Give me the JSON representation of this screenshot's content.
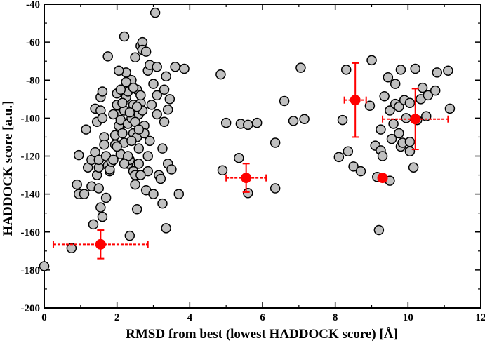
{
  "chart_data": {
    "type": "scatter",
    "title": "",
    "xlabel": "RMSD from best (lowest HADDOCK score) [Å]",
    "ylabel": "HADDOCK score [a.u.]",
    "xlim": [
      0,
      12
    ],
    "ylim": [
      -200,
      -40
    ],
    "x_ticks": [
      0,
      2,
      4,
      6,
      8,
      10,
      12
    ],
    "y_ticks": [
      -200,
      -180,
      -160,
      -140,
      -120,
      -100,
      -80,
      -60,
      -40
    ],
    "grid": false,
    "legend": "none",
    "colors": {
      "points_fill": "#c0c0c0",
      "points_stroke": "#000000",
      "cluster": "#ff0000"
    },
    "series": [
      {
        "marker": "circle-gray",
        "points": [
          [
            0.0,
            -178
          ],
          [
            0.75,
            -168.5
          ],
          [
            0.9,
            -135
          ],
          [
            0.95,
            -140
          ],
          [
            0.95,
            -119.5
          ],
          [
            1.1,
            -140
          ],
          [
            1.15,
            -106
          ],
          [
            1.2,
            -126
          ],
          [
            1.3,
            -122
          ],
          [
            1.3,
            -136
          ],
          [
            1.35,
            -156
          ],
          [
            1.4,
            -118
          ],
          [
            1.4,
            -95
          ],
          [
            1.45,
            -102
          ],
          [
            1.45,
            -130
          ],
          [
            1.5,
            -126
          ],
          [
            1.5,
            -137
          ],
          [
            1.55,
            -147
          ],
          [
            1.6,
            -152
          ],
          [
            1.5,
            -122
          ],
          [
            1.55,
            -96
          ],
          [
            1.55,
            -89
          ],
          [
            1.6,
            -86
          ],
          [
            1.6,
            -100
          ],
          [
            1.65,
            -110
          ],
          [
            1.65,
            -114
          ],
          [
            1.7,
            -142
          ],
          [
            1.7,
            -120
          ],
          [
            1.75,
            -125
          ],
          [
            1.75,
            -67.5
          ],
          [
            1.8,
            -128
          ],
          [
            1.8,
            -127
          ],
          [
            1.85,
            -123
          ],
          [
            1.9,
            -122
          ],
          [
            1.95,
            -114
          ],
          [
            1.95,
            -109
          ],
          [
            2.0,
            -93
          ],
          [
            2.0,
            -87
          ],
          [
            2.0,
            -98
          ],
          [
            2.05,
            -104
          ],
          [
            2.1,
            -119
          ],
          [
            2.1,
            -101
          ],
          [
            2.15,
            -108
          ],
          [
            2.2,
            -57
          ],
          [
            2.2,
            -96
          ],
          [
            2.2,
            -113
          ],
          [
            2.25,
            -89
          ],
          [
            2.25,
            -76
          ],
          [
            2.3,
            -86
          ],
          [
            2.3,
            -103
          ],
          [
            2.3,
            -124
          ],
          [
            2.35,
            -162
          ],
          [
            2.35,
            -122
          ],
          [
            2.4,
            -80
          ],
          [
            2.4,
            -100
          ],
          [
            2.45,
            -93
          ],
          [
            2.45,
            -108
          ],
          [
            2.45,
            -128
          ],
          [
            2.5,
            -135
          ],
          [
            2.5,
            -130
          ],
          [
            2.55,
            -85
          ],
          [
            2.55,
            -110
          ],
          [
            2.6,
            -116
          ],
          [
            2.6,
            -124
          ],
          [
            2.6,
            -98
          ],
          [
            2.65,
            -92
          ],
          [
            2.65,
            -88
          ],
          [
            2.65,
            -62
          ],
          [
            2.7,
            -60
          ],
          [
            2.7,
            -64
          ],
          [
            2.7,
            -96
          ],
          [
            2.75,
            -104
          ],
          [
            2.75,
            -108
          ],
          [
            2.8,
            -138
          ],
          [
            2.85,
            -128
          ],
          [
            2.85,
            -120
          ],
          [
            2.8,
            -65
          ],
          [
            2.85,
            -75
          ],
          [
            2.9,
            -72
          ],
          [
            2.9,
            -112
          ],
          [
            2.95,
            -93
          ],
          [
            3.0,
            -82
          ],
          [
            3.0,
            -140
          ],
          [
            3.05,
            -44.5
          ],
          [
            3.1,
            -98
          ],
          [
            3.1,
            -73
          ],
          [
            3.1,
            -88
          ],
          [
            3.15,
            -130
          ],
          [
            3.2,
            -132
          ],
          [
            3.25,
            -145
          ],
          [
            3.25,
            -116
          ],
          [
            3.3,
            -85
          ],
          [
            3.3,
            -102
          ],
          [
            3.35,
            -78
          ],
          [
            3.35,
            -158
          ],
          [
            3.4,
            -95.5
          ],
          [
            3.4,
            -124
          ],
          [
            3.45,
            -90
          ],
          [
            3.5,
            -127
          ],
          [
            3.6,
            -73
          ],
          [
            3.7,
            -140
          ],
          [
            3.85,
            -74
          ],
          [
            2.05,
            -75
          ],
          [
            2.5,
            -68
          ],
          [
            2.55,
            -148
          ],
          [
            2.65,
            -130
          ],
          [
            2.4,
            -112
          ],
          [
            2.3,
            -120
          ],
          [
            2.25,
            -81
          ],
          [
            2.15,
            -92
          ],
          [
            2.1,
            -85
          ],
          [
            2.0,
            -115
          ],
          [
            1.9,
            -98
          ],
          [
            2.5,
            -102
          ],
          [
            2.55,
            -94
          ],
          [
            2.6,
            -106
          ],
          [
            2.2,
            -124
          ],
          [
            2.35,
            -97
          ],
          [
            2.45,
            -84
          ],
          [
            4.85,
            -77
          ],
          [
            4.9,
            -127.5
          ],
          [
            5.0,
            -102.5
          ],
          [
            5.35,
            -121
          ],
          [
            5.4,
            -103
          ],
          [
            5.6,
            -139.5
          ],
          [
            5.6,
            -103.5
          ],
          [
            5.85,
            -102.5
          ],
          [
            6.35,
            -113
          ],
          [
            6.35,
            -137
          ],
          [
            6.6,
            -91
          ],
          [
            6.85,
            -101.5
          ],
          [
            7.05,
            -73.5
          ],
          [
            7.15,
            -100.5
          ],
          [
            8.1,
            -120.5
          ],
          [
            8.2,
            -101
          ],
          [
            8.3,
            -74.5
          ],
          [
            8.35,
            -117.5
          ],
          [
            8.5,
            -125.5
          ],
          [
            8.7,
            -128
          ],
          [
            8.95,
            -93.5
          ],
          [
            9.0,
            -69.5
          ],
          [
            9.1,
            -114.5
          ],
          [
            9.15,
            -131
          ],
          [
            9.2,
            -159
          ],
          [
            9.25,
            -117
          ],
          [
            9.25,
            -106
          ],
          [
            9.3,
            -120
          ],
          [
            9.35,
            -88.5
          ],
          [
            9.45,
            -78.5
          ],
          [
            9.5,
            -133
          ],
          [
            9.5,
            -96
          ],
          [
            9.55,
            -111
          ],
          [
            9.6,
            -103
          ],
          [
            9.65,
            -92.5
          ],
          [
            9.65,
            -82
          ],
          [
            9.75,
            -94
          ],
          [
            9.75,
            -108
          ],
          [
            9.8,
            -115
          ],
          [
            9.8,
            -74.5
          ],
          [
            9.85,
            -113
          ],
          [
            9.9,
            -90.5
          ],
          [
            9.95,
            -100
          ],
          [
            10.05,
            -117.5
          ],
          [
            10.05,
            -112.5
          ],
          [
            10.05,
            -92
          ],
          [
            10.15,
            -126
          ],
          [
            10.2,
            -74
          ],
          [
            10.25,
            -101
          ],
          [
            10.35,
            -90
          ],
          [
            10.4,
            -84
          ],
          [
            10.5,
            -99
          ],
          [
            10.55,
            -88
          ],
          [
            10.75,
            -85.5
          ],
          [
            10.8,
            -76
          ],
          [
            11.1,
            -75
          ],
          [
            11.15,
            -95
          ]
        ]
      },
      {
        "marker": "cluster-mean-with-error",
        "points": [
          {
            "x": 1.55,
            "y": -166.5,
            "xerr": 1.3,
            "yerr": 7.5
          },
          {
            "x": 5.55,
            "y": -131.5,
            "xerr": 0.55,
            "yerr": 7.5
          },
          {
            "x": 8.55,
            "y": -90.5,
            "xerr": 0.3,
            "yerr": 19.5
          },
          {
            "x": 9.3,
            "y": -131.5,
            "xerr": 0.1,
            "yerr": 1.0
          },
          {
            "x": 10.2,
            "y": -100.5,
            "xerr": 0.9,
            "yerr": 16.0
          }
        ]
      }
    ]
  }
}
